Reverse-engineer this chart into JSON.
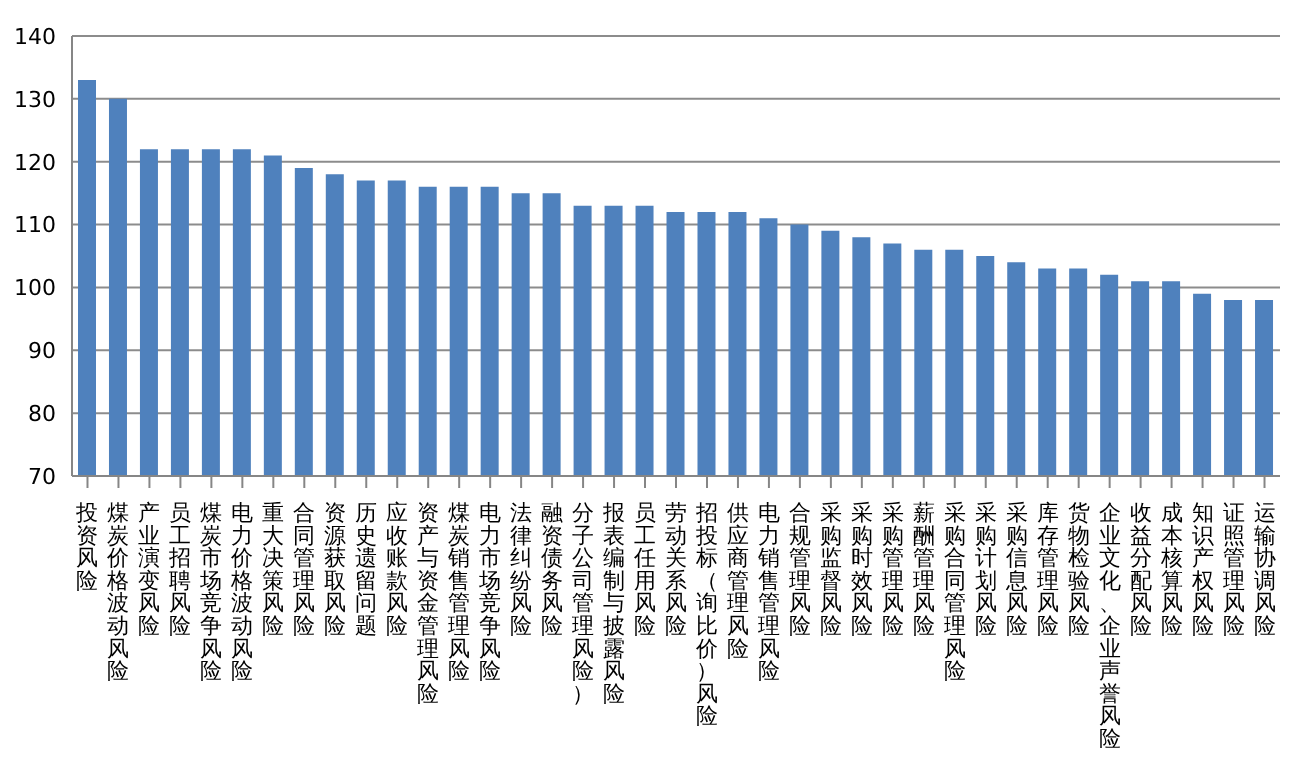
{
  "chart_data": {
    "type": "bar",
    "categories": [
      "投资风险",
      "煤炭价格波动风险",
      "产业演变风险",
      "员工招聘风险",
      "煤炭市场竞争风险",
      "电力价格波动风险",
      "重大决策风险",
      "合同管理风险",
      "资源获取风险",
      "历史遗留问题",
      "应收账款风险",
      "资产与资金管理风险",
      "煤炭销售管理风险",
      "电力市场竞争风险",
      "法律纠纷风险",
      "融资债务风险",
      "分子公司管理风险）",
      "报表编制与披露风险",
      "员工任用风险",
      "劳动关系风险",
      "招投标（询比价）风险",
      "供应商管理风险",
      "电力销售管理风险",
      "合规管理风险",
      "采购监督风险",
      "采购时效风险",
      "采购管理风险",
      "薪酬管理风险",
      "采购合同管理风险",
      "采购计划风险",
      "采购信息风险",
      "库存管理风险",
      "货物检验风险",
      "企业文化、企业声誉风险",
      "收益分配风险",
      "成本核算风险",
      "知识产权风险",
      "证照管理风险",
      "运输协调风险"
    ],
    "values": [
      133,
      130,
      122,
      122,
      122,
      122,
      121,
      119,
      118,
      117,
      117,
      116,
      116,
      116,
      115,
      115,
      113,
      113,
      113,
      112,
      112,
      112,
      111,
      110,
      109,
      108,
      107,
      106,
      106,
      105,
      104,
      103,
      103,
      102,
      101,
      101,
      99,
      98,
      98
    ],
    "color": "#4f81bd",
    "ylim": [
      70,
      140
    ],
    "yticks": [
      70,
      80,
      90,
      100,
      110,
      120,
      130,
      140
    ],
    "grid": "y"
  }
}
